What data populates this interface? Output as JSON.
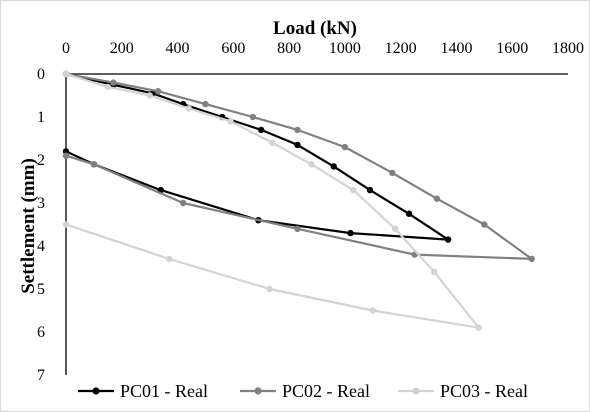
{
  "chart_data": {
    "type": "line",
    "xlabel": "Load (kN)",
    "ylabel": "Settlement (mm)",
    "xlim": [
      0,
      1800
    ],
    "ylim": [
      0,
      7
    ],
    "y_inverted": true,
    "x_axis_position": "top",
    "grid": false,
    "legend_position": "bottom",
    "x_ticks": [
      "0",
      "200",
      "400",
      "600",
      "800",
      "1000",
      "1200",
      "1400",
      "1600",
      "1800"
    ],
    "y_ticks": [
      "0",
      "1",
      "2",
      "3",
      "4",
      "5",
      "6",
      "7"
    ],
    "series": [
      {
        "name": "PC01 - Real",
        "color": "#000000",
        "x": [
          0,
          170,
          310,
          420,
          560,
          700,
          830,
          960,
          1090,
          1230,
          1370,
          1020,
          690,
          340,
          100,
          0
        ],
        "y": [
          0,
          0.25,
          0.45,
          0.7,
          1.0,
          1.3,
          1.65,
          2.15,
          2.7,
          3.25,
          3.85,
          3.7,
          3.4,
          2.7,
          2.1,
          1.8
        ]
      },
      {
        "name": "PC02 - Real",
        "color": "#808080",
        "x": [
          0,
          170,
          330,
          500,
          670,
          830,
          1000,
          1170,
          1330,
          1500,
          1670,
          1250,
          830,
          420,
          100,
          0
        ],
        "y": [
          0,
          0.2,
          0.4,
          0.7,
          1.0,
          1.3,
          1.7,
          2.3,
          2.9,
          3.5,
          4.3,
          4.2,
          3.6,
          3.0,
          2.1,
          1.9
        ]
      },
      {
        "name": "PC03 - Real",
        "color": "#d3d3d3",
        "x": [
          0,
          150,
          300,
          440,
          590,
          740,
          880,
          1030,
          1180,
          1320,
          1480,
          1100,
          730,
          370,
          0
        ],
        "y": [
          0,
          0.3,
          0.5,
          0.8,
          1.1,
          1.6,
          2.1,
          2.7,
          3.6,
          4.6,
          5.9,
          5.5,
          5.0,
          4.3,
          3.5
        ]
      }
    ]
  }
}
